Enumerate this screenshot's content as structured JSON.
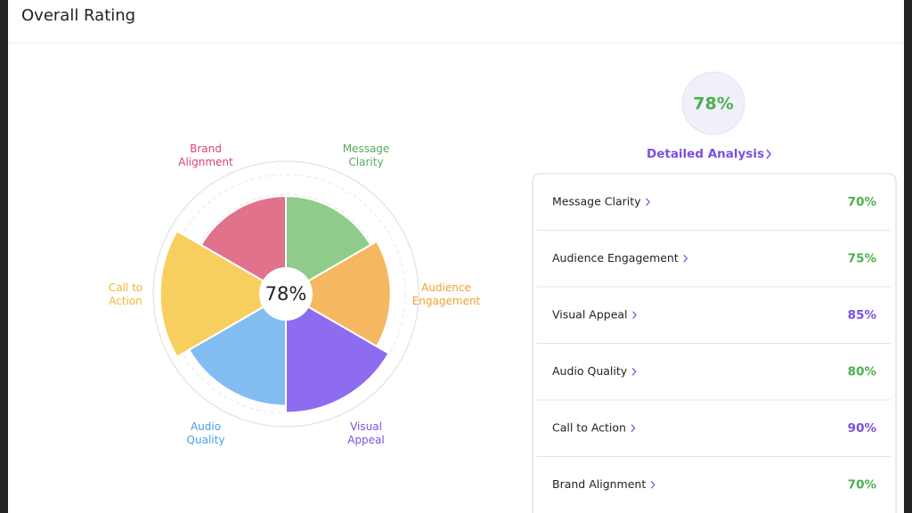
{
  "title": "Overall Rating",
  "overall_score": "78%",
  "detail_link": "Detailed Analysis",
  "chart_data": {
    "type": "polar",
    "categories": [
      "Message Clarity",
      "Audience Engagement",
      "Visual Appeal",
      "Audio Quality",
      "Call to Action",
      "Brand Alignment"
    ],
    "values": [
      70,
      75,
      85,
      80,
      90,
      70
    ],
    "value_labels": [
      "70%",
      "75%",
      "85%",
      "80%",
      "90%",
      "70%"
    ],
    "colors": [
      "#8fcb8a",
      "#f5b860",
      "#8e6cf0",
      "#82bdf2",
      "#f8cf5e",
      "#e0728c"
    ],
    "label_colors": [
      "#5ba85b",
      "#f0a030",
      "#7b4fe0",
      "#4a9fe8",
      "#f0b830",
      "#d9446e"
    ],
    "value_colors": [
      "#4caf50",
      "#4caf50",
      "#7b4fe0",
      "#4caf50",
      "#7b4fe0",
      "#4caf50"
    ],
    "rlim": [
      0,
      100
    ]
  }
}
